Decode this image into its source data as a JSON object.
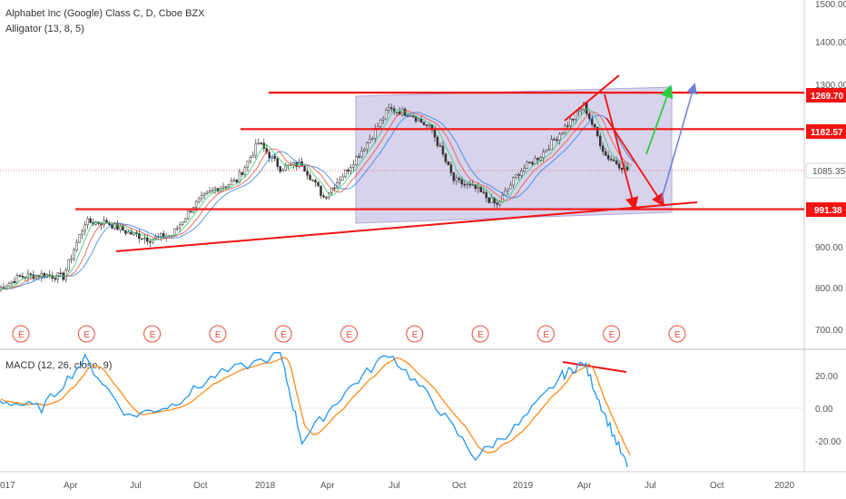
{
  "header": {
    "symbol_line": "Alphabet Inc (Google) Class C, D, Cboe BZX",
    "indicator_line": "Alligator (13, 8, 5)"
  },
  "macd": {
    "title": "MACD (12, 26, close, 9)",
    "ticks": [
      "20.00",
      "0.00",
      "-20.00"
    ]
  },
  "colors": {
    "candle": "#333333",
    "support_resistance": "#f21313",
    "channel_fill": "#c9c4e6",
    "green_arrow": "#2ecc40",
    "blue_arrow": "#6b7fd6",
    "alligator_jaw": "#2f7de1",
    "alligator_teeth": "#e74c3c",
    "alligator_lips": "#2ecc71",
    "macd_line": "#2196f3",
    "signal_line": "#ff8c1a"
  },
  "chart_data": {
    "type": "candlestick",
    "y_axis_ticks": [
      "1500.00",
      "1400.00",
      "1300.00",
      "900.00",
      "800.00",
      "700.00"
    ],
    "x_axis_ticks": [
      "017",
      "Apr",
      "Jul",
      "Oct",
      "2018",
      "Apr",
      "Jul",
      "Oct",
      "2019",
      "Apr",
      "Jul",
      "Oct",
      "2020"
    ],
    "horizontal_levels": [
      {
        "label": "1269.70",
        "value": 1269.7
      },
      {
        "label": "1182.57",
        "value": 1182.57
      },
      {
        "label": "991.38",
        "value": 991.38
      }
    ],
    "last_price": {
      "label": "1085.35",
      "value": 1085.35
    },
    "earnings_marker": "E",
    "earnings_count": 11,
    "price_path": [
      [
        "2017-01",
        800
      ],
      [
        "2017-02",
        830
      ],
      [
        "2017-03",
        835
      ],
      [
        "2017-04",
        830
      ],
      [
        "2017-05",
        960
      ],
      [
        "2017-06",
        960
      ],
      [
        "2017-07",
        935
      ],
      [
        "2017-08",
        920
      ],
      [
        "2017-09",
        930
      ],
      [
        "2017-10",
        1000
      ],
      [
        "2017-11",
        1040
      ],
      [
        "2017-12",
        1060
      ],
      [
        "2018-01",
        1150
      ],
      [
        "2018-02",
        1090
      ],
      [
        "2018-03",
        1100
      ],
      [
        "2018-04",
        1020
      ],
      [
        "2018-05",
        1080
      ],
      [
        "2018-06",
        1150
      ],
      [
        "2018-07",
        1230
      ],
      [
        "2018-08",
        1220
      ],
      [
        "2018-09",
        1180
      ],
      [
        "2018-10",
        1060
      ],
      [
        "2018-11",
        1040
      ],
      [
        "2018-12",
        1000
      ],
      [
        "2019-01",
        1080
      ],
      [
        "2019-02",
        1120
      ],
      [
        "2019-03",
        1180
      ],
      [
        "2019-04",
        1240
      ],
      [
        "2019-05",
        1120
      ],
      [
        "2019-06",
        1085
      ]
    ],
    "macd_path": [
      [
        "2017-01",
        5
      ],
      [
        "2017-03",
        0
      ],
      [
        "2017-05",
        30
      ],
      [
        "2017-07",
        -5
      ],
      [
        "2017-09",
        2
      ],
      [
        "2017-11",
        20
      ],
      [
        "2018-02",
        33
      ],
      [
        "2018-03",
        -20
      ],
      [
        "2018-05",
        10
      ],
      [
        "2018-07",
        34
      ],
      [
        "2018-09",
        5
      ],
      [
        "2018-11",
        -30
      ],
      [
        "2019-01",
        -10
      ],
      [
        "2019-03",
        20
      ],
      [
        "2019-04",
        28
      ],
      [
        "2019-05",
        -5
      ],
      [
        "2019-06",
        -36
      ]
    ]
  }
}
